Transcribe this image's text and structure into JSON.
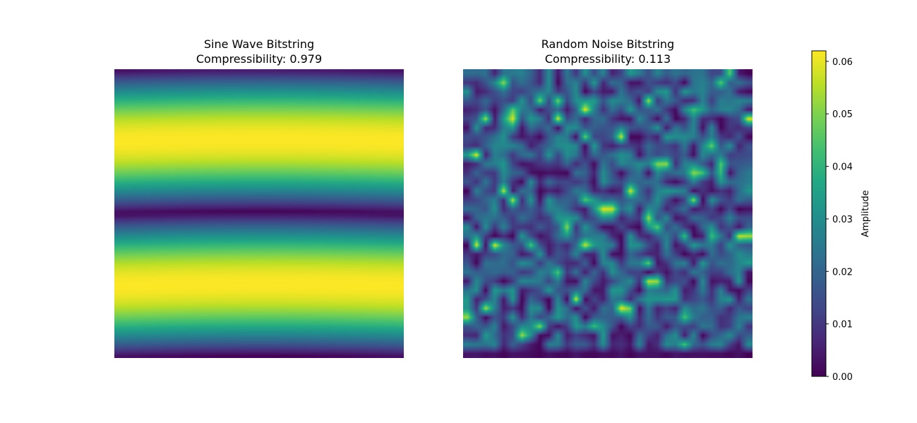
{
  "chart_data": [
    {
      "type": "heatmap",
      "title": "Sine Wave Bitstring",
      "subtitle": "Compressibility: 0.979",
      "axes_visible": false,
      "colormap": "viridis",
      "vmin": 0.0,
      "vmax": 0.062,
      "grid_size": [
        64,
        64
      ],
      "pattern": "horizontal bands varying along rows: two full periods of a rectified sine wave, amplitude peaks at about 0.062",
      "row_profile_samples": [
        0.0,
        0.024,
        0.044,
        0.058,
        0.062,
        0.058,
        0.044,
        0.024,
        0.0,
        0.024,
        0.044,
        0.058,
        0.062,
        0.058,
        0.044,
        0.024,
        0.0
      ]
    },
    {
      "type": "heatmap",
      "title": "Random Noise Bitstring",
      "subtitle": "Compressibility: 0.113",
      "axes_visible": false,
      "colormap": "viridis",
      "vmin": 0.0,
      "vmax": 0.062,
      "grid_size": [
        32,
        32
      ],
      "pattern": "random noise field with values mostly 0.0-0.035 and scattered bright peaks near 0.055-0.06"
    }
  ],
  "colorbar": {
    "label": "Amplitude",
    "min": 0.0,
    "max": 0.062,
    "ticks": [
      "0.00",
      "0.01",
      "0.02",
      "0.03",
      "0.04",
      "0.05",
      "0.06"
    ],
    "tick_values": [
      0.0,
      0.01,
      0.02,
      0.03,
      0.04,
      0.05,
      0.06
    ]
  },
  "colors": {
    "viridis_low": "#440154",
    "viridis_mid": "#21918c",
    "viridis_high": "#fde725"
  }
}
